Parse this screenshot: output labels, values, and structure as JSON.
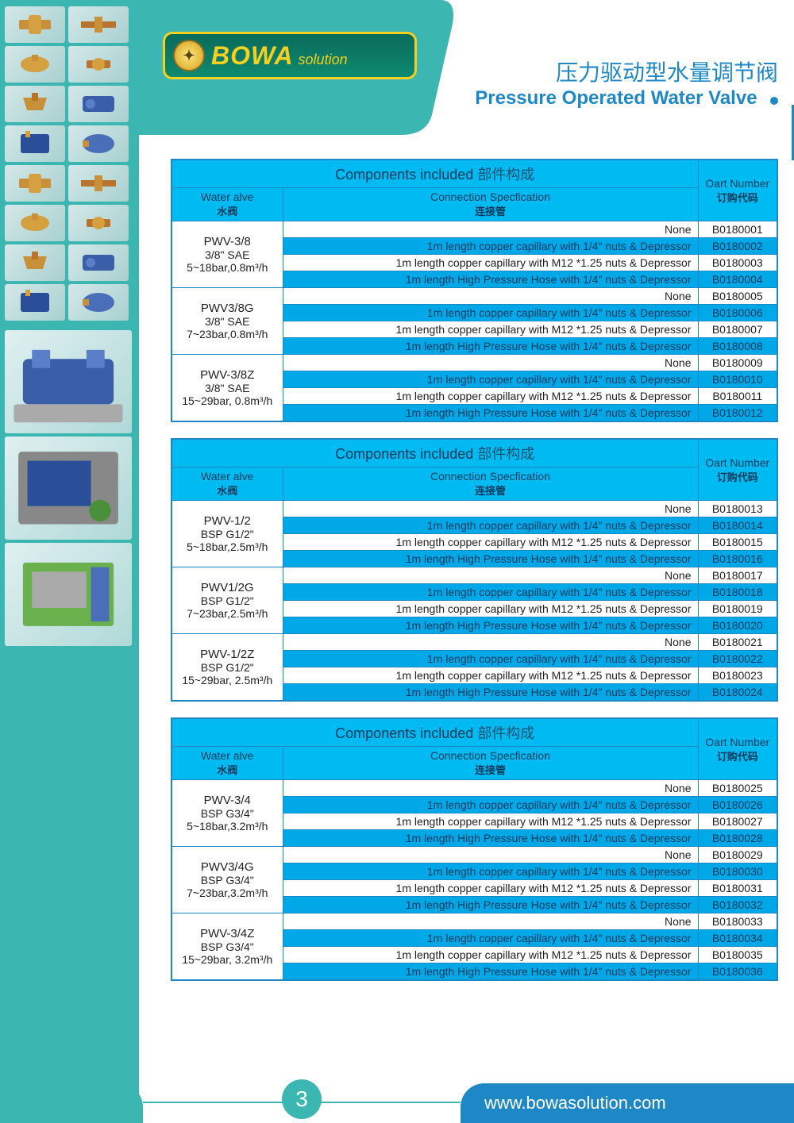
{
  "logo": {
    "brand": "BOWA",
    "suffix": "solution"
  },
  "title": {
    "cn": "压力驱动型水量调节阀",
    "en": "Pressure Operated Water Valve"
  },
  "table_headers": {
    "main_en": "Components included",
    "main_cn": "部件构成",
    "valve_en": "Water alve",
    "valve_cn": "水阀",
    "conn_en": "Connection Specfication",
    "conn_cn": "连接管",
    "part_en": "Oart Number",
    "part_cn": "订购代码"
  },
  "conn_specs": [
    "None",
    "1m length copper capillary with 1/4\" nuts & Depressor",
    "1m length copper capillary with M12 *1.25 nuts & Depressor",
    "1m length High Pressure Hose with 1/4\" nuts & Depressor"
  ],
  "tables": [
    {
      "groups": [
        {
          "valve": [
            "PWV-3/8",
            "3/8\" SAE",
            "5~18bar,0.8m³/h"
          ],
          "parts": [
            "B0180001",
            "B0180002",
            "B0180003",
            "B0180004"
          ]
        },
        {
          "valve": [
            "PWV3/8G",
            "3/8\" SAE",
            "7~23bar,0.8m³/h"
          ],
          "parts": [
            "B0180005",
            "B0180006",
            "B0180007",
            "B0180008"
          ]
        },
        {
          "valve": [
            "PWV-3/8Z",
            "3/8\" SAE",
            "15~29bar, 0.8m³/h"
          ],
          "parts": [
            "B0180009",
            "B0180010",
            "B0180011",
            "B0180012"
          ]
        }
      ]
    },
    {
      "groups": [
        {
          "valve": [
            "PWV-1/2",
            "BSP G1/2\"",
            "5~18bar,2.5m³/h"
          ],
          "parts": [
            "B0180013",
            "B0180014",
            "B0180015",
            "B0180016"
          ]
        },
        {
          "valve": [
            "PWV1/2G",
            "BSP G1/2\"",
            "7~23bar,2.5m³/h"
          ],
          "parts": [
            "B0180017",
            "B0180018",
            "B0180019",
            "B0180020"
          ]
        },
        {
          "valve": [
            "PWV-1/2Z",
            "BSP G1/2\"",
            "15~29bar, 2.5m³/h"
          ],
          "parts": [
            "B0180021",
            "B0180022",
            "B0180023",
            "B0180024"
          ]
        }
      ]
    },
    {
      "groups": [
        {
          "valve": [
            "PWV-3/4",
            "BSP G3/4\"",
            "5~18bar,3.2m³/h"
          ],
          "parts": [
            "B0180025",
            "B0180026",
            "B0180027",
            "B0180028"
          ]
        },
        {
          "valve": [
            "PWV3/4G",
            "BSP G3/4\"",
            "7~23bar,3.2m³/h"
          ],
          "parts": [
            "B0180029",
            "B0180030",
            "B0180031",
            "B0180032"
          ]
        },
        {
          "valve": [
            "PWV-3/4Z",
            "BSP G3/4\"",
            "15~29bar, 3.2m³/h"
          ],
          "parts": [
            "B0180033",
            "B0180034",
            "B0180035",
            "B0180036"
          ]
        }
      ]
    }
  ],
  "footer": {
    "url": "www.bowasolution.com",
    "page": "3"
  },
  "colors": {
    "teal": "#3bb6b0",
    "blue": "#1e88c7",
    "cyan": "#00baf2",
    "rowblue": "#00a8e8"
  }
}
